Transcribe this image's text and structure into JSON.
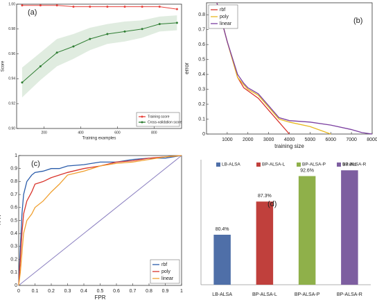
{
  "chart_data": [
    {
      "type": "line",
      "label": "(a)",
      "xlabel": "Training examples",
      "ylabel": "Score",
      "x": [
        80,
        180,
        270,
        360,
        450,
        545,
        640,
        735,
        830,
        925
      ],
      "xlim": [
        50,
        950
      ],
      "xticks": [
        200,
        400,
        600,
        800
      ],
      "ylim": [
        0.9,
        1.0
      ],
      "yticks": [
        {
          "value": 0.9,
          "label": "0.90"
        },
        {
          "value": 0.92,
          "label": "0.92"
        },
        {
          "value": 0.94,
          "label": "0.94"
        },
        {
          "value": 0.96,
          "label": "0.96"
        },
        {
          "value": 0.98,
          "label": "0.98"
        },
        {
          "value": 1.0,
          "label": "1.00"
        }
      ],
      "legend": "lower right",
      "series": [
        {
          "name": "Training score",
          "color": "#e8413b",
          "marker": "o",
          "values": [
            0.999,
            0.999,
            0.999,
            0.998,
            0.998,
            0.998,
            0.998,
            0.998,
            0.998,
            0.996
          ]
        },
        {
          "name": "Cross-validation score",
          "color": "#2e7d32",
          "marker": "o",
          "values": [
            0.937,
            0.95,
            0.961,
            0.966,
            0.972,
            0.976,
            0.978,
            0.98,
            0.984,
            0.985
          ],
          "std": [
            0.012,
            0.011,
            0.011,
            0.01,
            0.009,
            0.008,
            0.008,
            0.007,
            0.006,
            0.006
          ]
        }
      ]
    },
    {
      "type": "line",
      "label": "(b)",
      "xlabel": "training size",
      "ylabel": "error",
      "x": [
        500,
        1000,
        1500,
        1800,
        2000,
        2500,
        3000,
        3500,
        4000,
        5000,
        6000,
        7000,
        7500,
        8000
      ],
      "xlim": [
        0,
        8000
      ],
      "xticks": [
        1000,
        2000,
        3000,
        4000,
        5000,
        6000,
        7000,
        8000
      ],
      "ylim": [
        0,
        0.88
      ],
      "yticks": [
        0,
        0.1,
        0.2,
        0.3,
        0.4,
        0.5,
        0.6,
        0.7,
        0.8
      ],
      "legend": "upper left",
      "series": [
        {
          "name": "rbf",
          "color": "#d9342b",
          "values": [
            0.88,
            0.62,
            0.38,
            0.31,
            0.29,
            0.24,
            0.16,
            0.08,
            0.0,
            null,
            null,
            null,
            null,
            null
          ]
        },
        {
          "name": "poly",
          "color": "#e8b820",
          "values": [
            0.88,
            0.62,
            0.38,
            0.33,
            0.3,
            0.26,
            0.18,
            0.1,
            0.08,
            0.05,
            0.0,
            null,
            null,
            null
          ]
        },
        {
          "name": "linear",
          "color": "#7b3fa0",
          "values": [
            0.88,
            0.62,
            0.4,
            0.34,
            0.31,
            0.27,
            0.19,
            0.11,
            0.09,
            0.08,
            0.06,
            0.03,
            0.01,
            0.0
          ]
        }
      ]
    },
    {
      "type": "line",
      "label": "(c)",
      "xlabel": "FPR",
      "ylabel": "TPR",
      "x": [
        0,
        0.01,
        0.02,
        0.03,
        0.05,
        0.08,
        0.1,
        0.15,
        0.2,
        0.25,
        0.3,
        0.4,
        0.5,
        0.6,
        0.7,
        0.8,
        0.9,
        1
      ],
      "xlim": [
        0,
        1
      ],
      "xticks": [
        0,
        0.1,
        0.2,
        0.3,
        0.4,
        0.5,
        0.6,
        0.7,
        0.8,
        0.9,
        1
      ],
      "ylim": [
        0,
        1
      ],
      "yticks": [
        0,
        0.1,
        0.2,
        0.3,
        0.4,
        0.5,
        0.6,
        0.7,
        0.8,
        0.9,
        1
      ],
      "legend": "lower right",
      "series": [
        {
          "name": "rbf",
          "color": "#2a5caa",
          "values": [
            0,
            0.3,
            0.55,
            0.7,
            0.8,
            0.85,
            0.87,
            0.88,
            0.9,
            0.9,
            0.92,
            0.93,
            0.95,
            0.95,
            0.97,
            0.98,
            0.98,
            1
          ]
        },
        {
          "name": "poly",
          "color": "#d9342b",
          "values": [
            0,
            0.2,
            0.4,
            0.55,
            0.65,
            0.72,
            0.78,
            0.8,
            0.83,
            0.85,
            0.87,
            0.9,
            0.92,
            0.95,
            0.96,
            0.98,
            0.99,
            1
          ]
        },
        {
          "name": "linear",
          "color": "#f0a030",
          "values": [
            0,
            0.1,
            0.25,
            0.4,
            0.5,
            0.55,
            0.6,
            0.65,
            0.72,
            0.78,
            0.85,
            0.88,
            0.92,
            0.94,
            0.95,
            0.97,
            0.99,
            1
          ]
        }
      ]
    },
    {
      "type": "bar",
      "label": "(d)",
      "categories": [
        "LB-ALSA",
        "BP-ALSA-L",
        "BP-ALSA-P",
        "BP-ALSA-R"
      ],
      "values": [
        80.4,
        87.3,
        92.6,
        93.8
      ],
      "value_labels": [
        "80.4%",
        "87.3%",
        "92.6%",
        "93.8%"
      ],
      "colors": [
        "#4f6fa8",
        "#c0403c",
        "#8fb04a",
        "#7d5ea0"
      ],
      "ylim": [
        70,
        96
      ],
      "legend": "top"
    }
  ]
}
